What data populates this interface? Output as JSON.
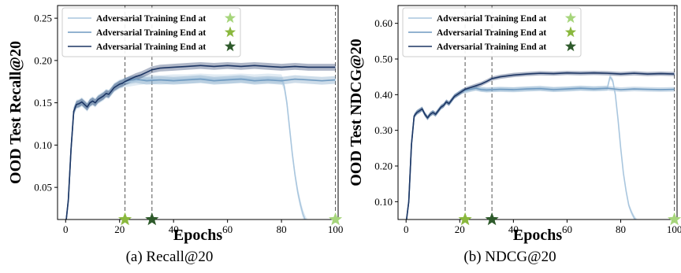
{
  "colors": {
    "series_light": "#a9c6de",
    "series_mid": "#6f9ac0",
    "series_dark": "#1c3563",
    "star_light": "#a6d57b",
    "star_mid": "#8ab83e",
    "star_dark": "#2e5a2b",
    "vline": "#555555"
  },
  "chart_data": [
    {
      "type": "line",
      "caption": "(a) Recall@20",
      "xlabel": "Epochs",
      "ylabel": "OOD Test  Recall@20",
      "xlim": [
        -3,
        101
      ],
      "ylim": [
        0.012,
        0.265
      ],
      "xticks": [
        0,
        20,
        40,
        60,
        80,
        100
      ],
      "xtick_labels": [
        "0",
        "20",
        "40",
        "60",
        "80",
        "100"
      ],
      "yticks": [
        0.05,
        0.1,
        0.15,
        0.2,
        0.25
      ],
      "ytick_labels": [
        "0.05",
        "0.10",
        "0.15",
        "0.20",
        "0.25"
      ],
      "legend_position": "top-left",
      "grid": false,
      "vlines": [
        22,
        32,
        100
      ],
      "stars": [
        {
          "x": 22,
          "color": "#8ab83e"
        },
        {
          "x": 32,
          "color": "#2e5a2b"
        },
        {
          "x": 100,
          "color": "#a6d57b"
        }
      ],
      "series": [
        {
          "name": "Adversarial Training End at",
          "legend_star": "#a6d57b",
          "color": "#a9c6de",
          "x": [
            0,
            1,
            2,
            3,
            4,
            5,
            6,
            7,
            8,
            9,
            10,
            11,
            12,
            13,
            14,
            15,
            16,
            17,
            18,
            19,
            20,
            21,
            22,
            24,
            26,
            28,
            30,
            35,
            40,
            45,
            50,
            55,
            60,
            65,
            70,
            75,
            80,
            81,
            82,
            83,
            84,
            85,
            86,
            87,
            88,
            89,
            90,
            92,
            95,
            98,
            100
          ],
          "y": [
            0.005,
            0.035,
            0.095,
            0.14,
            0.148,
            0.149,
            0.151,
            0.148,
            0.145,
            0.15,
            0.152,
            0.15,
            0.154,
            0.156,
            0.158,
            0.161,
            0.16,
            0.164,
            0.168,
            0.17,
            0.172,
            0.173,
            0.174,
            0.175,
            0.176,
            0.177,
            0.178,
            0.177,
            0.178,
            0.178,
            0.179,
            0.178,
            0.178,
            0.179,
            0.178,
            0.179,
            0.178,
            0.17,
            0.15,
            0.12,
            0.09,
            0.065,
            0.045,
            0.03,
            0.018,
            0.01,
            0.005,
            0.0,
            0.0,
            0.0,
            0.0
          ]
        },
        {
          "name": "Adversarial Training End at",
          "legend_star": "#8ab83e",
          "color": "#6f9ac0",
          "x": [
            0,
            1,
            2,
            3,
            4,
            5,
            6,
            7,
            8,
            9,
            10,
            11,
            12,
            13,
            14,
            15,
            16,
            17,
            18,
            19,
            20,
            21,
            22,
            24,
            26,
            28,
            30,
            35,
            40,
            45,
            50,
            55,
            60,
            65,
            70,
            75,
            80,
            85,
            90,
            95,
            100
          ],
          "y": [
            0.005,
            0.035,
            0.095,
            0.14,
            0.148,
            0.149,
            0.151,
            0.148,
            0.145,
            0.15,
            0.152,
            0.15,
            0.154,
            0.156,
            0.158,
            0.161,
            0.16,
            0.164,
            0.168,
            0.17,
            0.172,
            0.173,
            0.175,
            0.177,
            0.178,
            0.177,
            0.176,
            0.177,
            0.176,
            0.177,
            0.178,
            0.176,
            0.177,
            0.178,
            0.176,
            0.177,
            0.176,
            0.178,
            0.177,
            0.176,
            0.177
          ]
        },
        {
          "name": "Adversarial Training End at",
          "legend_star": "#2e5a2b",
          "color": "#1c3563",
          "x": [
            0,
            1,
            2,
            3,
            4,
            5,
            6,
            7,
            8,
            9,
            10,
            11,
            12,
            13,
            14,
            15,
            16,
            17,
            18,
            19,
            20,
            21,
            22,
            24,
            26,
            28,
            30,
            32,
            35,
            40,
            45,
            50,
            55,
            60,
            65,
            70,
            75,
            80,
            85,
            90,
            95,
            100
          ],
          "y": [
            0.005,
            0.035,
            0.095,
            0.14,
            0.148,
            0.149,
            0.151,
            0.148,
            0.145,
            0.15,
            0.152,
            0.15,
            0.154,
            0.156,
            0.158,
            0.161,
            0.16,
            0.164,
            0.168,
            0.17,
            0.172,
            0.173,
            0.175,
            0.178,
            0.181,
            0.183,
            0.186,
            0.189,
            0.191,
            0.192,
            0.193,
            0.194,
            0.193,
            0.194,
            0.193,
            0.194,
            0.193,
            0.192,
            0.193,
            0.192,
            0.192,
            0.192
          ]
        }
      ]
    },
    {
      "type": "line",
      "caption": "(b) NDCG@20",
      "xlabel": "Epochs",
      "ylabel": "OOD Test  NDCG@20",
      "xlim": [
        -3,
        101
      ],
      "ylim": [
        0.05,
        0.65
      ],
      "xticks": [
        0,
        20,
        40,
        60,
        80,
        100
      ],
      "xtick_labels": [
        "0",
        "20",
        "40",
        "60",
        "80",
        "100"
      ],
      "yticks": [
        0.1,
        0.2,
        0.3,
        0.4,
        0.5,
        0.6
      ],
      "ytick_labels": [
        "0.10",
        "0.20",
        "0.30",
        "0.40",
        "0.50",
        "0.60"
      ],
      "legend_position": "top-left",
      "grid": false,
      "vlines": [
        22,
        32,
        100
      ],
      "stars": [
        {
          "x": 22,
          "color": "#8ab83e"
        },
        {
          "x": 32,
          "color": "#2e5a2b"
        },
        {
          "x": 100,
          "color": "#a6d57b"
        }
      ],
      "series": [
        {
          "name": "Adversarial Training End at",
          "legend_star": "#a6d57b",
          "color": "#a9c6de",
          "x": [
            0,
            1,
            2,
            3,
            4,
            5,
            6,
            7,
            8,
            9,
            10,
            11,
            12,
            13,
            14,
            15,
            16,
            17,
            18,
            19,
            20,
            21,
            22,
            24,
            26,
            28,
            30,
            35,
            40,
            45,
            50,
            55,
            60,
            65,
            70,
            75,
            76,
            77,
            78,
            79,
            80,
            81,
            82,
            83,
            84,
            85,
            86,
            87,
            88,
            90,
            95,
            100
          ],
          "y": [
            0.04,
            0.1,
            0.26,
            0.34,
            0.35,
            0.355,
            0.36,
            0.345,
            0.335,
            0.345,
            0.35,
            0.345,
            0.355,
            0.365,
            0.37,
            0.38,
            0.375,
            0.385,
            0.395,
            0.4,
            0.405,
            0.41,
            0.41,
            0.415,
            0.418,
            0.416,
            0.414,
            0.415,
            0.414,
            0.416,
            0.418,
            0.415,
            0.416,
            0.418,
            0.417,
            0.418,
            0.45,
            0.44,
            0.4,
            0.33,
            0.25,
            0.18,
            0.13,
            0.09,
            0.07,
            0.055,
            0.045,
            0.04,
            0.035,
            0.03,
            0.03,
            0.03
          ]
        },
        {
          "name": "Adversarial Training End at",
          "legend_star": "#8ab83e",
          "color": "#6f9ac0",
          "x": [
            0,
            1,
            2,
            3,
            4,
            5,
            6,
            7,
            8,
            9,
            10,
            11,
            12,
            13,
            14,
            15,
            16,
            17,
            18,
            19,
            20,
            21,
            22,
            24,
            26,
            28,
            30,
            35,
            40,
            45,
            50,
            55,
            60,
            65,
            70,
            75,
            80,
            85,
            90,
            95,
            100
          ],
          "y": [
            0.04,
            0.1,
            0.26,
            0.34,
            0.35,
            0.355,
            0.36,
            0.345,
            0.335,
            0.345,
            0.35,
            0.345,
            0.355,
            0.365,
            0.37,
            0.38,
            0.375,
            0.385,
            0.395,
            0.4,
            0.405,
            0.41,
            0.412,
            0.415,
            0.418,
            0.414,
            0.413,
            0.415,
            0.414,
            0.416,
            0.417,
            0.414,
            0.416,
            0.418,
            0.416,
            0.418,
            0.414,
            0.416,
            0.415,
            0.414,
            0.415
          ]
        },
        {
          "name": "Adversarial Training End at",
          "legend_star": "#2e5a2b",
          "color": "#1c3563",
          "x": [
            0,
            1,
            2,
            3,
            4,
            5,
            6,
            7,
            8,
            9,
            10,
            11,
            12,
            13,
            14,
            15,
            16,
            17,
            18,
            19,
            20,
            21,
            22,
            24,
            26,
            28,
            30,
            32,
            35,
            40,
            45,
            50,
            55,
            60,
            65,
            70,
            75,
            80,
            85,
            90,
            95,
            100
          ],
          "y": [
            0.04,
            0.1,
            0.26,
            0.34,
            0.35,
            0.355,
            0.36,
            0.345,
            0.335,
            0.345,
            0.35,
            0.345,
            0.355,
            0.365,
            0.37,
            0.38,
            0.375,
            0.385,
            0.395,
            0.4,
            0.405,
            0.41,
            0.415,
            0.42,
            0.425,
            0.43,
            0.437,
            0.445,
            0.45,
            0.455,
            0.458,
            0.46,
            0.459,
            0.461,
            0.46,
            0.461,
            0.46,
            0.458,
            0.46,
            0.458,
            0.459,
            0.458
          ]
        }
      ]
    }
  ]
}
